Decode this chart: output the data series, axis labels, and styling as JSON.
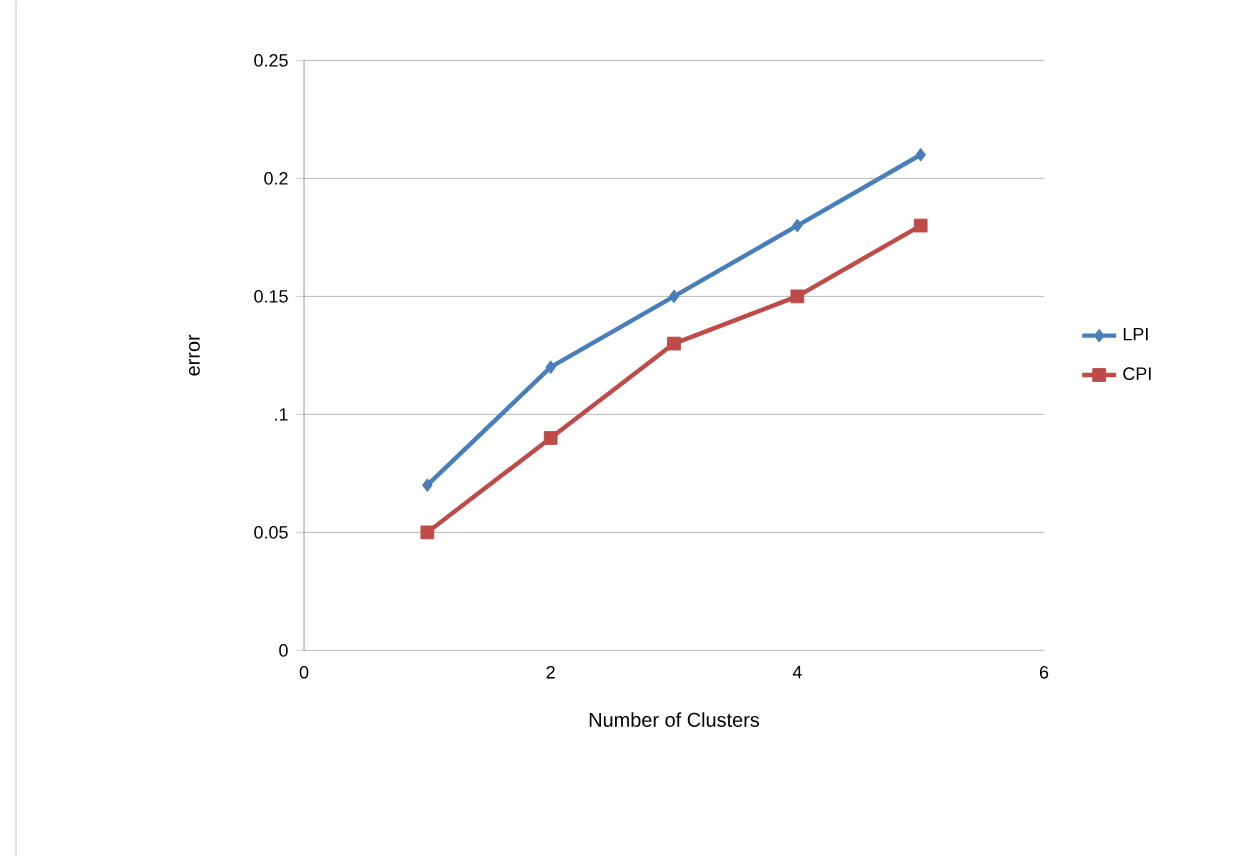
{
  "chart_data": {
    "type": "line",
    "xlabel": "Number of Clusters",
    "ylabel": "error",
    "x": [
      1,
      2,
      3,
      4,
      5
    ],
    "series": [
      {
        "name": "LPI",
        "color": "#4a7ebb",
        "marker": "diamond",
        "values": [
          0.07,
          0.12,
          0.15,
          0.18,
          0.21
        ]
      },
      {
        "name": "CPI",
        "color": "#be4b48",
        "marker": "square",
        "values": [
          0.05,
          0.09,
          0.13,
          0.15,
          0.18
        ]
      }
    ],
    "xlim": [
      0,
      6
    ],
    "xticks": [
      0,
      2,
      4,
      6
    ],
    "ylim": [
      0,
      0.25
    ],
    "yticks": [
      0,
      0.05,
      {
        "value": 0.1,
        "label": ".1"
      },
      0.15,
      0.2,
      0.25
    ],
    "grid": "y",
    "legend": "right"
  }
}
